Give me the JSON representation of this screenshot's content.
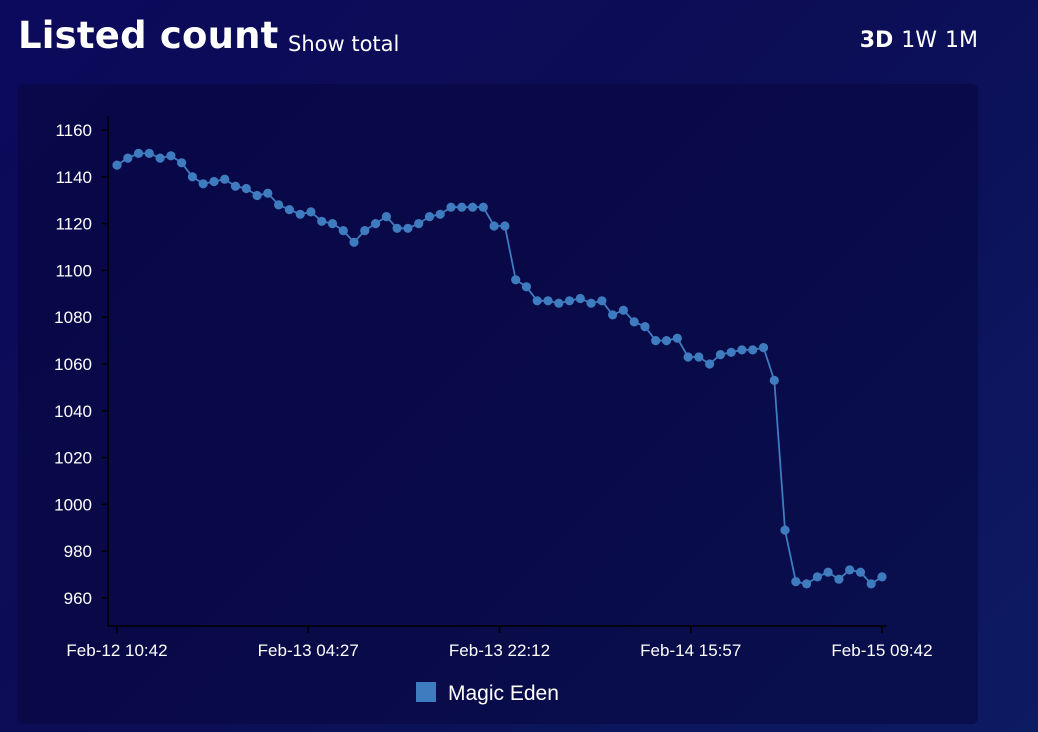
{
  "header": {
    "title": "Listed count",
    "show_total_label": "Show total",
    "ranges": [
      {
        "label": "3D",
        "active": true
      },
      {
        "label": "1W",
        "active": false
      },
      {
        "label": "1M",
        "active": false
      }
    ]
  },
  "colors": {
    "series": "#3e7bbf",
    "axis": "#000000",
    "text": "#ffffff",
    "background": "#0b0a5c"
  },
  "chart_data": {
    "type": "line",
    "title": "Listed count",
    "xlabel": "",
    "ylabel": "",
    "ylim": [
      948,
      1166
    ],
    "yticks": [
      960,
      980,
      1000,
      1020,
      1040,
      1060,
      1080,
      1100,
      1120,
      1140,
      1160
    ],
    "xticks": [
      "Feb-12 10:42",
      "Feb-13 04:27",
      "Feb-13 22:12",
      "Feb-14 15:57",
      "Feb-15 09:42"
    ],
    "x_range": [
      0,
      71
    ],
    "grid": false,
    "legend_position": "bottom-center",
    "series": [
      {
        "name": "Magic Eden",
        "values": [
          1145,
          1148,
          1150,
          1150,
          1148,
          1149,
          1146,
          1140,
          1137,
          1138,
          1139,
          1136,
          1135,
          1132,
          1133,
          1128,
          1126,
          1124,
          1125,
          1121,
          1120,
          1117,
          1112,
          1117,
          1120,
          1123,
          1118,
          1118,
          1120,
          1123,
          1124,
          1127,
          1127,
          1127,
          1127,
          1119,
          1119,
          1096,
          1093,
          1087,
          1087,
          1086,
          1087,
          1088,
          1086,
          1087,
          1081,
          1083,
          1078,
          1076,
          1070,
          1070,
          1071,
          1063,
          1063,
          1060,
          1064,
          1065,
          1066,
          1066,
          1067,
          1053,
          989,
          967,
          966,
          969,
          971,
          968,
          972,
          971,
          966,
          969
        ]
      }
    ]
  }
}
